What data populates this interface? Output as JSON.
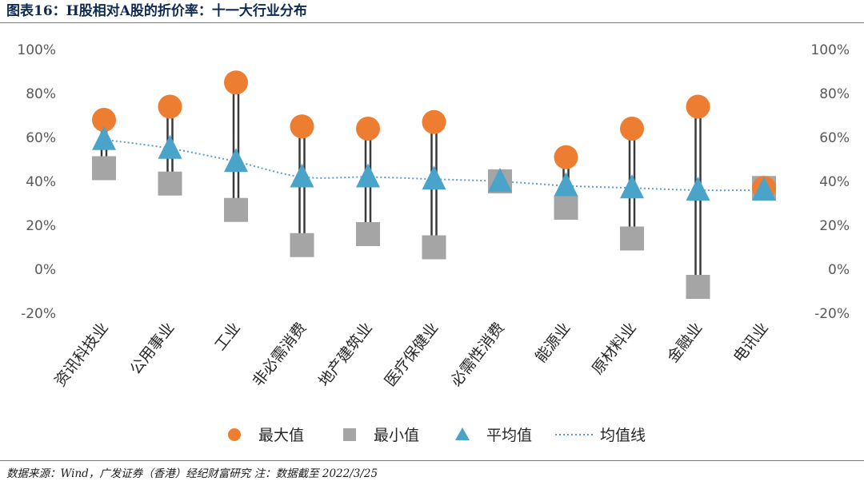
{
  "header": {
    "title": "图表16：H股相对A股的折价率：十一大行业分布"
  },
  "footer": {
    "source": "数据来源：Wind，广发证券（香港）经纪财富研究  注：数据截至 2022/3/25"
  },
  "chart_data": {
    "type": "scatter",
    "categories": [
      "资讯科技业",
      "公用事业",
      "工业",
      "非必需消费",
      "地产建筑业",
      "医疗保健业",
      "必需性消费",
      "能源业",
      "原材料业",
      "金融业",
      "电讯业"
    ],
    "series": [
      {
        "name": "最大值",
        "marker": "circle",
        "color": "#ed7d31",
        "values": [
          68,
          74,
          85,
          65,
          64,
          67,
          40,
          51,
          64,
          74,
          37
        ]
      },
      {
        "name": "最小值",
        "marker": "square",
        "color": "#a5a5a5",
        "values": [
          46,
          39,
          27,
          11,
          16,
          10,
          40,
          28,
          14,
          -8,
          37
        ]
      },
      {
        "name": "平均值",
        "marker": "triangle",
        "color": "#4aa3c9",
        "values": [
          59,
          55,
          49,
          42,
          42,
          41,
          40,
          38,
          37,
          36,
          36
        ]
      },
      {
        "name": "均值线",
        "marker": "dotted-line",
        "color": "#5b9bd5",
        "values": [
          59,
          55,
          49,
          42,
          42,
          41,
          40,
          38,
          37,
          36,
          36
        ]
      }
    ],
    "ylim": [
      -20,
      100
    ],
    "yticks": [
      "-20%",
      "0%",
      "20%",
      "40%",
      "60%",
      "80%",
      "100%"
    ],
    "ytick_values": [
      -20,
      0,
      20,
      40,
      60,
      80,
      100
    ],
    "secondary_yticks": [
      "-20%",
      "0%",
      "20%",
      "40%",
      "60%",
      "80%",
      "100%"
    ],
    "range_bar_color": "#3a3a3a",
    "grid": false,
    "legend_position": "bottom"
  }
}
